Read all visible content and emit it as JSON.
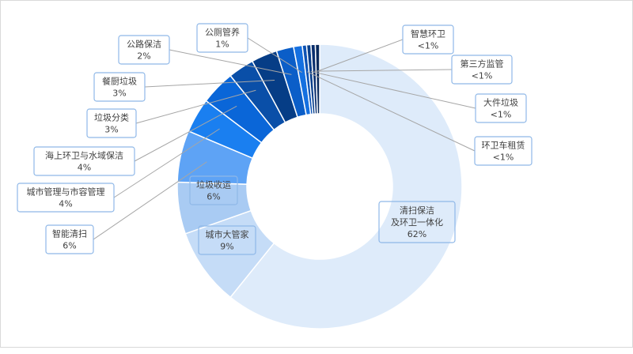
{
  "chart_data": {
    "type": "pie",
    "donut": true,
    "legend": "none",
    "slices": [
      {
        "name": "清扫保洁及环卫一体化",
        "label_lines": [
          "清扫保洁",
          "及环卫一体化"
        ],
        "pct_label": "62%",
        "value": 62,
        "color": "#deebfa"
      },
      {
        "name": "城市大管家",
        "label_lines": [
          "城市大管家"
        ],
        "pct_label": "9%",
        "value": 9,
        "color": "#c5dcf7"
      },
      {
        "name": "垃圾收运",
        "label_lines": [
          "垃圾收运"
        ],
        "pct_label": "6%",
        "value": 6,
        "color": "#a9cbf3"
      },
      {
        "name": "智能清扫",
        "label_lines": [
          "智能清扫"
        ],
        "pct_label": "6%",
        "value": 6,
        "color": "#5ea3f5"
      },
      {
        "name": "城市管理与市容管理",
        "label_lines": [
          "城市管理与市容管理"
        ],
        "pct_label": "4%",
        "value": 4,
        "color": "#1a7ff0"
      },
      {
        "name": "海上环卫与水域保洁",
        "label_lines": [
          "海上环卫与水域保洁"
        ],
        "pct_label": "4%",
        "value": 4,
        "color": "#0a66d8"
      },
      {
        "name": "垃圾分类",
        "label_lines": [
          "垃圾分类"
        ],
        "pct_label": "3%",
        "value": 3,
        "color": "#0a4fa8"
      },
      {
        "name": "餐厨垃圾",
        "label_lines": [
          "餐厨垃圾"
        ],
        "pct_label": "3%",
        "value": 3,
        "color": "#063d86"
      },
      {
        "name": "公路保洁",
        "label_lines": [
          "公路保洁"
        ],
        "pct_label": "2%",
        "value": 2,
        "color": "#0b5ec8"
      },
      {
        "name": "公厕管养",
        "label_lines": [
          "公厕管养"
        ],
        "pct_label": "1%",
        "value": 1,
        "color": "#1570e0"
      },
      {
        "name": "环卫车租赁",
        "label_lines": [
          "环卫车租赁"
        ],
        "pct_label": "<1%",
        "value": 0.5,
        "color": "#0c52b4"
      },
      {
        "name": "大件垃圾",
        "label_lines": [
          "大件垃圾"
        ],
        "pct_label": "<1%",
        "value": 0.5,
        "color": "#073e8a"
      },
      {
        "name": "第三方监管",
        "label_lines": [
          "第三方监管"
        ],
        "pct_label": "<1%",
        "value": 0.5,
        "color": "#0a2f6e"
      },
      {
        "name": "智慧环卫",
        "label_lines": [
          "智慧环卫"
        ],
        "pct_label": "<1%",
        "value": 0.5,
        "color": "#092a5c"
      }
    ]
  }
}
